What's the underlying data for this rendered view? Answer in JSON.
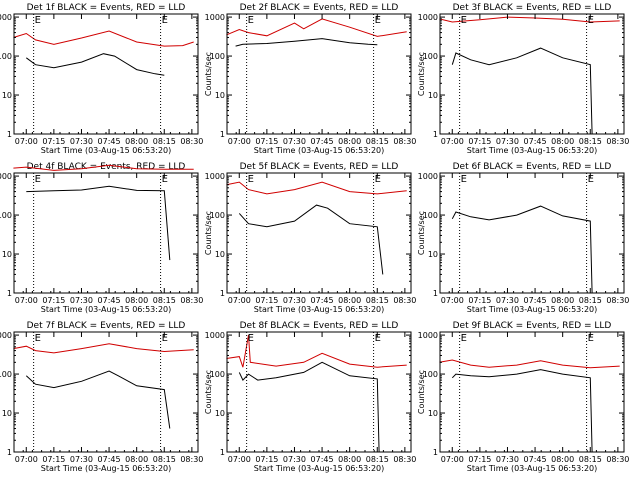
{
  "colors": {
    "events": "#000000",
    "lld": "#d00000",
    "axes": "#000000",
    "background": "#ffffff"
  },
  "shared": {
    "ylabel": "Counts/sec",
    "xlabel": "Start Time (03-Aug-15 06:53:20)",
    "ytick_labels": [
      "1",
      "10",
      "100",
      "1000"
    ],
    "xtick_labels": [
      "07:00",
      "07:15",
      "07:30",
      "07:45",
      "08:00",
      "08:15",
      "08:30"
    ],
    "marker_label": "E",
    "marker_times": [
      "07:04",
      "08:13"
    ]
  },
  "chart_data": [
    {
      "type": "line",
      "title": "Det 1f BLACK = Events, RED = LLD",
      "xlim": [
        "06:53:20",
        "08:33:20"
      ],
      "ylim": [
        1,
        1200
      ],
      "yscale": "log",
      "series": [
        {
          "name": "Events",
          "color": "#000000",
          "points": [
            [
              "07:00",
              90
            ],
            [
              "07:05",
              60
            ],
            [
              "07:15",
              50
            ],
            [
              "07:30",
              70
            ],
            [
              "07:42",
              115
            ],
            [
              "07:48",
              100
            ],
            [
              "08:00",
              45
            ],
            [
              "08:10",
              35
            ],
            [
              "08:15",
              32
            ]
          ]
        },
        {
          "name": "LLD",
          "color": "#d00000",
          "points": [
            [
              "06:53",
              300
            ],
            [
              "07:00",
              380
            ],
            [
              "07:05",
              260
            ],
            [
              "07:15",
              200
            ],
            [
              "07:30",
              290
            ],
            [
              "07:45",
              440
            ],
            [
              "08:00",
              230
            ],
            [
              "08:15",
              180
            ],
            [
              "08:25",
              185
            ],
            [
              "08:31",
              230
            ]
          ]
        }
      ]
    },
    {
      "type": "line",
      "title": "Det 2f BLACK = Events, RED = LLD",
      "xlim": [
        "06:53:20",
        "08:33:20"
      ],
      "ylim": [
        1,
        1200
      ],
      "yscale": "log",
      "series": [
        {
          "name": "Events",
          "color": "#000000",
          "points": [
            [
              "06:58",
              180
            ],
            [
              "07:02",
              200
            ],
            [
              "07:15",
              210
            ],
            [
              "07:30",
              240
            ],
            [
              "07:45",
              280
            ],
            [
              "08:00",
              220
            ],
            [
              "08:10",
              200
            ],
            [
              "08:15",
              195
            ]
          ]
        },
        {
          "name": "LLD",
          "color": "#d00000",
          "points": [
            [
              "06:53",
              350
            ],
            [
              "07:00",
              480
            ],
            [
              "07:05",
              400
            ],
            [
              "07:15",
              330
            ],
            [
              "07:30",
              700
            ],
            [
              "07:35",
              500
            ],
            [
              "07:45",
              900
            ],
            [
              "08:00",
              550
            ],
            [
              "08:15",
              320
            ],
            [
              "08:31",
              420
            ]
          ]
        }
      ]
    },
    {
      "type": "line",
      "title": "Det 3f BLACK = Events, RED = LLD",
      "xlim": [
        "06:53:20",
        "08:33:20"
      ],
      "ylim": [
        1,
        1200
      ],
      "yscale": "log",
      "series": [
        {
          "name": "Events",
          "color": "#000000",
          "points": [
            [
              "07:00",
              60
            ],
            [
              "07:02",
              120
            ],
            [
              "07:10",
              80
            ],
            [
              "07:20",
              60
            ],
            [
              "07:35",
              90
            ],
            [
              "07:48",
              160
            ],
            [
              "08:00",
              90
            ],
            [
              "08:15",
              60
            ],
            [
              "08:16",
              1
            ]
          ]
        },
        {
          "name": "LLD",
          "color": "#d00000",
          "points": [
            [
              "06:53",
              900
            ],
            [
              "07:00",
              750
            ],
            [
              "07:15",
              850
            ],
            [
              "07:30",
              1000
            ],
            [
              "07:45",
              950
            ],
            [
              "08:00",
              880
            ],
            [
              "08:15",
              750
            ],
            [
              "08:31",
              800
            ]
          ]
        }
      ]
    },
    {
      "type": "line",
      "title": "Det 4f BLACK = Events, RED = LLD",
      "xlim": [
        "06:53:20",
        "08:33:20"
      ],
      "ylim": [
        1,
        1200
      ],
      "yscale": "log",
      "series": [
        {
          "name": "Events",
          "color": "#000000",
          "points": [
            [
              "07:00",
              400
            ],
            [
              "07:15",
              420
            ],
            [
              "07:30",
              440
            ],
            [
              "07:45",
              550
            ],
            [
              "08:00",
              430
            ],
            [
              "08:15",
              420
            ],
            [
              "08:18",
              7
            ]
          ]
        },
        {
          "name": "LLD",
          "color": "#d00000",
          "points": [
            [
              "06:53",
              1600
            ],
            [
              "07:00",
              1700
            ],
            [
              "07:15",
              1400
            ],
            [
              "07:30",
              1550
            ],
            [
              "07:45",
              1900
            ],
            [
              "08:00",
              1550
            ],
            [
              "08:15",
              1500
            ],
            [
              "08:31",
              1500
            ]
          ]
        }
      ]
    },
    {
      "type": "line",
      "title": "Det 5f BLACK = Events, RED = LLD",
      "xlim": [
        "06:53:20",
        "08:33:20"
      ],
      "ylim": [
        1,
        1200
      ],
      "yscale": "log",
      "series": [
        {
          "name": "Events",
          "color": "#000000",
          "points": [
            [
              "07:00",
              110
            ],
            [
              "07:05",
              60
            ],
            [
              "07:15",
              50
            ],
            [
              "07:30",
              70
            ],
            [
              "07:42",
              180
            ],
            [
              "07:48",
              150
            ],
            [
              "08:00",
              60
            ],
            [
              "08:15",
              50
            ],
            [
              "08:18",
              3
            ]
          ]
        },
        {
          "name": "LLD",
          "color": "#d00000",
          "points": [
            [
              "06:53",
              600
            ],
            [
              "07:00",
              700
            ],
            [
              "07:05",
              450
            ],
            [
              "07:15",
              350
            ],
            [
              "07:30",
              450
            ],
            [
              "07:45",
              700
            ],
            [
              "08:00",
              400
            ],
            [
              "08:15",
              350
            ],
            [
              "08:31",
              420
            ]
          ]
        }
      ]
    },
    {
      "type": "line",
      "title": "Det 6f BLACK = Events, RED = LLD",
      "xlim": [
        "06:53:20",
        "08:33:20"
      ],
      "ylim": [
        1,
        1200
      ],
      "yscale": "log",
      "series": [
        {
          "name": "Events",
          "color": "#000000",
          "points": [
            [
              "07:00",
              80
            ],
            [
              "07:02",
              120
            ],
            [
              "07:10",
              90
            ],
            [
              "07:20",
              75
            ],
            [
              "07:35",
              100
            ],
            [
              "07:48",
              170
            ],
            [
              "08:00",
              95
            ],
            [
              "08:15",
              70
            ],
            [
              "08:16",
              1
            ]
          ]
        }
      ]
    },
    {
      "type": "line",
      "title": "Det 7f BLACK = Events, RED = LLD",
      "xlim": [
        "06:53:20",
        "08:33:20"
      ],
      "ylim": [
        1,
        1200
      ],
      "yscale": "log",
      "series": [
        {
          "name": "Events",
          "color": "#000000",
          "points": [
            [
              "07:00",
              90
            ],
            [
              "07:05",
              55
            ],
            [
              "07:15",
              45
            ],
            [
              "07:30",
              65
            ],
            [
              "07:45",
              120
            ],
            [
              "07:50",
              90
            ],
            [
              "08:00",
              50
            ],
            [
              "08:15",
              40
            ],
            [
              "08:18",
              4
            ]
          ]
        },
        {
          "name": "LLD",
          "color": "#d00000",
          "points": [
            [
              "06:53",
              450
            ],
            [
              "07:00",
              520
            ],
            [
              "07:05",
              400
            ],
            [
              "07:15",
              350
            ],
            [
              "07:30",
              450
            ],
            [
              "07:45",
              600
            ],
            [
              "08:00",
              450
            ],
            [
              "08:15",
              380
            ],
            [
              "08:31",
              420
            ]
          ]
        }
      ]
    },
    {
      "type": "line",
      "title": "Det 8f BLACK = Events, RED = LLD",
      "xlim": [
        "06:53:20",
        "08:33:20"
      ],
      "ylim": [
        1,
        1200
      ],
      "yscale": "log",
      "series": [
        {
          "name": "Events",
          "color": "#000000",
          "points": [
            [
              "07:00",
              110
            ],
            [
              "07:02",
              70
            ],
            [
              "07:05",
              100
            ],
            [
              "07:10",
              70
            ],
            [
              "07:20",
              80
            ],
            [
              "07:35",
              110
            ],
            [
              "07:45",
              200
            ],
            [
              "08:00",
              90
            ],
            [
              "08:15",
              75
            ],
            [
              "08:16",
              1
            ]
          ]
        },
        {
          "name": "LLD",
          "color": "#d00000",
          "points": [
            [
              "06:53",
              250
            ],
            [
              "07:00",
              280
            ],
            [
              "07:02",
              150
            ],
            [
              "07:05",
              1000
            ],
            [
              "07:06",
              200
            ],
            [
              "07:20",
              160
            ],
            [
              "07:35",
              200
            ],
            [
              "07:45",
              340
            ],
            [
              "08:00",
              180
            ],
            [
              "08:15",
              150
            ],
            [
              "08:31",
              170
            ]
          ]
        }
      ]
    },
    {
      "type": "line",
      "title": "Det 9f BLACK = Events, RED = LLD",
      "xlim": [
        "06:53:20",
        "08:33:20"
      ],
      "ylim": [
        1,
        1200
      ],
      "yscale": "log",
      "series": [
        {
          "name": "Events",
          "color": "#000000",
          "points": [
            [
              "07:00",
              80
            ],
            [
              "07:02",
              100
            ],
            [
              "07:10",
              90
            ],
            [
              "07:20",
              85
            ],
            [
              "07:35",
              100
            ],
            [
              "07:48",
              130
            ],
            [
              "08:00",
              100
            ],
            [
              "08:15",
              80
            ],
            [
              "08:16",
              1
            ]
          ]
        },
        {
          "name": "LLD",
          "color": "#d00000",
          "points": [
            [
              "06:53",
              200
            ],
            [
              "07:00",
              230
            ],
            [
              "07:10",
              170
            ],
            [
              "07:20",
              150
            ],
            [
              "07:35",
              170
            ],
            [
              "07:48",
              220
            ],
            [
              "08:00",
              170
            ],
            [
              "08:15",
              145
            ],
            [
              "08:31",
              160
            ]
          ]
        }
      ]
    }
  ]
}
